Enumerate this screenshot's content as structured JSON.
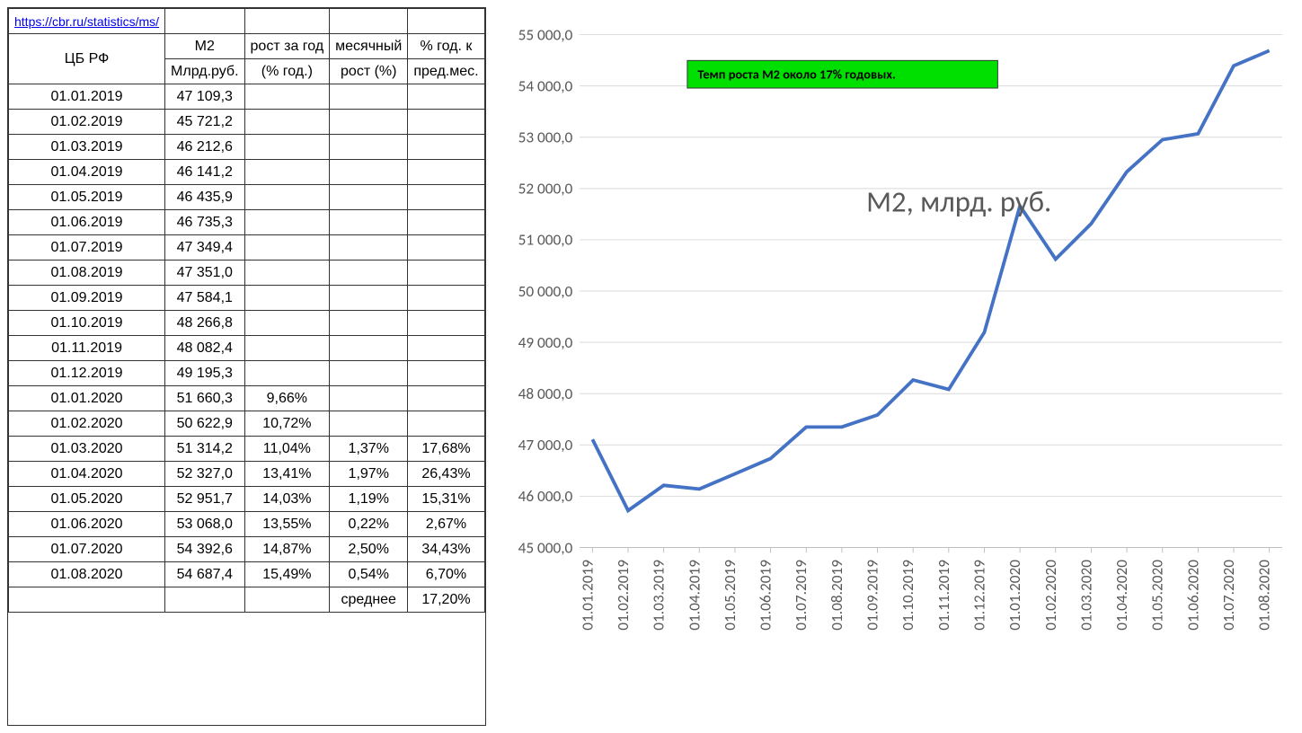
{
  "table": {
    "url": "https://cbr.ru/statistics/ms/",
    "header": {
      "col0_line1": "ЦБ РФ",
      "col1_line1": "М2",
      "col1_line2": "Млрд.руб.",
      "col2_line1": "рост за год",
      "col2_line2": "(% год.)",
      "col3_line1": "месячный",
      "col3_line2": "рост (%)",
      "col4_line1": "% год. к",
      "col4_line2": "пред.мес."
    },
    "rows": [
      {
        "date": "01.01.2019",
        "m2": "47 109,3",
        "yoy": "",
        "mom": "",
        "ann": ""
      },
      {
        "date": "01.02.2019",
        "m2": "45 721,2",
        "yoy": "",
        "mom": "",
        "ann": ""
      },
      {
        "date": "01.03.2019",
        "m2": "46 212,6",
        "yoy": "",
        "mom": "",
        "ann": ""
      },
      {
        "date": "01.04.2019",
        "m2": "46 141,2",
        "yoy": "",
        "mom": "",
        "ann": ""
      },
      {
        "date": "01.05.2019",
        "m2": "46 435,9",
        "yoy": "",
        "mom": "",
        "ann": ""
      },
      {
        "date": "01.06.2019",
        "m2": "46 735,3",
        "yoy": "",
        "mom": "",
        "ann": ""
      },
      {
        "date": "01.07.2019",
        "m2": "47 349,4",
        "yoy": "",
        "mom": "",
        "ann": ""
      },
      {
        "date": "01.08.2019",
        "m2": "47 351,0",
        "yoy": "",
        "mom": "",
        "ann": ""
      },
      {
        "date": "01.09.2019",
        "m2": "47 584,1",
        "yoy": "",
        "mom": "",
        "ann": ""
      },
      {
        "date": "01.10.2019",
        "m2": "48 266,8",
        "yoy": "",
        "mom": "",
        "ann": ""
      },
      {
        "date": "01.11.2019",
        "m2": "48 082,4",
        "yoy": "",
        "mom": "",
        "ann": ""
      },
      {
        "date": "01.12.2019",
        "m2": "49 195,3",
        "yoy": "",
        "mom": "",
        "ann": ""
      },
      {
        "date": "01.01.2020",
        "m2": "51 660,3",
        "yoy": "9,66%",
        "mom": "",
        "ann": ""
      },
      {
        "date": "01.02.2020",
        "m2": "50 622,9",
        "yoy": "10,72%",
        "mom": "",
        "ann": ""
      },
      {
        "date": "01.03.2020",
        "m2": "51 314,2",
        "yoy": "11,04%",
        "mom": "1,37%",
        "ann": "17,68%"
      },
      {
        "date": "01.04.2020",
        "m2": "52 327,0",
        "yoy": "13,41%",
        "mom": "1,97%",
        "ann": "26,43%"
      },
      {
        "date": "01.05.2020",
        "m2": "52 951,7",
        "yoy": "14,03%",
        "mom": "1,19%",
        "ann": "15,31%"
      },
      {
        "date": "01.06.2020",
        "m2": "53 068,0",
        "yoy": "13,55%",
        "mom": "0,22%",
        "ann": "2,67%"
      },
      {
        "date": "01.07.2020",
        "m2": "54 392,6",
        "yoy": "14,87%",
        "mom": "2,50%",
        "ann": "34,43%"
      },
      {
        "date": "01.08.2020",
        "m2": "54 687,4",
        "yoy": "15,49%",
        "mom": "0,54%",
        "ann": "6,70%"
      }
    ],
    "footer": {
      "label": "среднее",
      "value": "17,20%"
    }
  },
  "chart": {
    "type": "line",
    "title": "М2, млрд. руб.",
    "title_fontsize": 34,
    "title_color": "#595959",
    "annotation": {
      "text": "Темп роста М2 около 17% годовых.",
      "fill": "#00e000",
      "text_color": "#000000",
      "fontsize": 15
    },
    "line_color": "#4472c4",
    "line_width": 4,
    "background_color": "#ffffff",
    "plot_bg": "#ffffff",
    "grid_color": "#d9d9d9",
    "axis_color": "#bfbfbf",
    "label_color": "#595959",
    "ylim": [
      45000,
      55000
    ],
    "ytick_step": 1000,
    "yticks": [
      "45 000,0",
      "46 000,0",
      "47 000,0",
      "48 000,0",
      "49 000,0",
      "50 000,0",
      "51 000,0",
      "52 000,0",
      "53 000,0",
      "54 000,0",
      "55 000,0"
    ],
    "x_labels": [
      "01.01.2019",
      "01.02.2019",
      "01.03.2019",
      "01.04.2019",
      "01.05.2019",
      "01.06.2019",
      "01.07.2019",
      "01.08.2019",
      "01.09.2019",
      "01.10.2019",
      "01.11.2019",
      "01.12.2019",
      "01.01.2020",
      "01.02.2020",
      "01.03.2020",
      "01.04.2020",
      "01.05.2020",
      "01.06.2020",
      "01.07.2020",
      "01.08.2020"
    ],
    "y_values": [
      47109.3,
      45721.2,
      46212.6,
      46141.2,
      46435.9,
      46735.3,
      47349.4,
      47351.0,
      47584.1,
      48266.8,
      48082.4,
      49195.3,
      51660.3,
      50622.9,
      51314.2,
      52327.0,
      52951.7,
      53068.0,
      54392.6,
      54687.4
    ],
    "axis_fontsize": 18,
    "xlabel_fontsize": 18
  }
}
